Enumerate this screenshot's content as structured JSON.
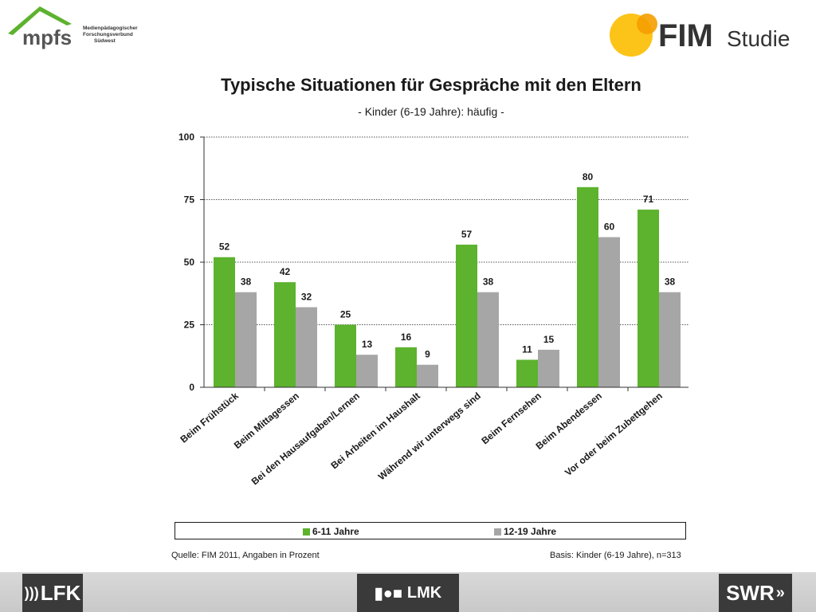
{
  "header": {
    "mpfs_logo": {
      "word": "mpfs",
      "line1": "Medienpädagogischer",
      "line2": "Forschungsverbund",
      "line3": "Südwest"
    },
    "fim_logo": {
      "fim": "FIM",
      "studie": "Studie"
    }
  },
  "chart_data": {
    "type": "bar",
    "title": "Typische Situationen für Gespräche mit den Eltern",
    "subtitle": "- Kinder (6-19 Jahre): häufig -",
    "categories": [
      "Beim Frühstück",
      "Beim Mittagessen",
      "Bei den Hausaufgaben/Lernen",
      "Bei Arbeiten im Haushalt",
      "Während wir unterwegs sind",
      "Beim Fernsehen",
      "Beim Abendessen",
      "Vor oder beim Zubettgehen"
    ],
    "series": [
      {
        "name": "6-11 Jahre",
        "color": "#5db22e",
        "values": [
          52,
          42,
          25,
          16,
          57,
          11,
          80,
          71
        ]
      },
      {
        "name": "12-19 Jahre",
        "color": "#a6a6a6",
        "values": [
          38,
          32,
          13,
          9,
          38,
          15,
          60,
          38
        ]
      }
    ],
    "ylim": [
      0,
      100
    ],
    "yticks": [
      0,
      25,
      50,
      75,
      100
    ],
    "grid": true,
    "legend_position": "bottom"
  },
  "footnotes": {
    "source": "Quelle: FIM 2011,  Angaben in Prozent",
    "basis": "Basis: Kinder (6-19 Jahre), n=313"
  },
  "footer": {
    "left_logo": "LFK",
    "center_logo": "LMK",
    "right_logo": "SWR"
  }
}
